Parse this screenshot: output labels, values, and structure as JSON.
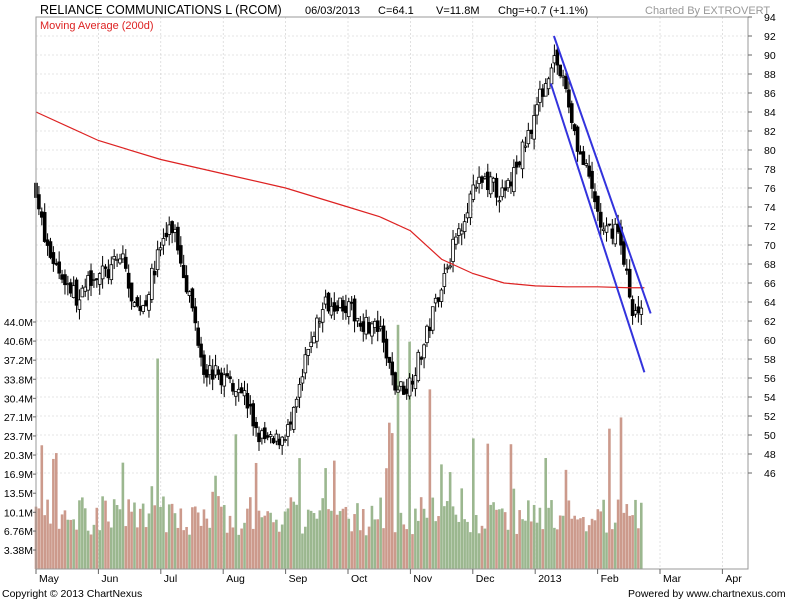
{
  "header": {
    "company": "RELIANCE COMMUNICATIONS L (RCOM)",
    "date": "06/03/2013",
    "close": "C=64.1",
    "volume": "V=11.8M",
    "change": "Chg=+0.7 (+1.1%)",
    "charted_by": "Charted By EXTROVERT"
  },
  "legend": {
    "ma_label": "Moving Average (200d)"
  },
  "footer": {
    "copyright": "Copyright © 2013 ChartNexus",
    "powered": "Powered by www.chartnexus.com"
  },
  "colors": {
    "ma_line": "#dd2222",
    "trendline": "#3333dd",
    "vol_up": "#9bb78f",
    "vol_down": "#cc9a8c",
    "grid": "#cccccc"
  },
  "chart_data": {
    "type": "candlestick",
    "title": "RELIANCE COMMUNICATIONS L (RCOM)",
    "price_axis": {
      "ticks": [
        46,
        48,
        50,
        52,
        54,
        56,
        58,
        60,
        62,
        64,
        66,
        68,
        70,
        72,
        74,
        76,
        78,
        80,
        82,
        84,
        86,
        88,
        90,
        92,
        94
      ],
      "ylim": [
        42.7,
        94
      ]
    },
    "volume_axis": {
      "ticks": [
        "3.38M",
        "6.76M",
        "10.1M",
        "13.5M",
        "16.9M",
        "20.3M",
        "23.7M",
        "27.1M",
        "30.4M",
        "33.8M",
        "37.2M",
        "40.6M",
        "44.0M"
      ],
      "unit": "M",
      "ylim": [
        0,
        44.0
      ]
    },
    "x_axis": {
      "labels": [
        "May",
        "Jun",
        "Jul",
        "Aug",
        "Sep",
        "Oct",
        "Nov",
        "Dec",
        "2013",
        "Feb",
        "Mar",
        "Apr"
      ]
    },
    "close_path": [
      {
        "m": 0,
        "close": 76
      },
      {
        "m": 0.15,
        "close": 70
      },
      {
        "m": 0.4,
        "close": 67
      },
      {
        "m": 0.7,
        "close": 64
      },
      {
        "m": 0.9,
        "close": 67
      },
      {
        "m": 1.15,
        "close": 67
      },
      {
        "m": 1.4,
        "close": 69
      },
      {
        "m": 1.55,
        "close": 63
      },
      {
        "m": 1.75,
        "close": 64
      },
      {
        "m": 2.0,
        "close": 70
      },
      {
        "m": 2.2,
        "close": 72
      },
      {
        "m": 2.45,
        "close": 65
      },
      {
        "m": 2.7,
        "close": 57
      },
      {
        "m": 3.0,
        "close": 56
      },
      {
        "m": 3.3,
        "close": 55
      },
      {
        "m": 3.55,
        "close": 50
      },
      {
        "m": 3.8,
        "close": 49
      },
      {
        "m": 4.1,
        "close": 51
      },
      {
        "m": 4.4,
        "close": 60
      },
      {
        "m": 4.65,
        "close": 64
      },
      {
        "m": 4.9,
        "close": 64
      },
      {
        "m": 5.2,
        "close": 62
      },
      {
        "m": 5.5,
        "close": 61
      },
      {
        "m": 5.75,
        "close": 55
      },
      {
        "m": 5.95,
        "close": 55
      },
      {
        "m": 6.2,
        "close": 59
      },
      {
        "m": 6.45,
        "close": 65
      },
      {
        "m": 6.7,
        "close": 70
      },
      {
        "m": 6.95,
        "close": 75
      },
      {
        "m": 7.2,
        "close": 77
      },
      {
        "m": 7.5,
        "close": 75
      },
      {
        "m": 7.75,
        "close": 79
      },
      {
        "m": 8.0,
        "close": 84
      },
      {
        "m": 8.15,
        "close": 87
      },
      {
        "m": 8.3,
        "close": 90
      },
      {
        "m": 8.5,
        "close": 86
      },
      {
        "m": 8.7,
        "close": 80
      },
      {
        "m": 8.9,
        "close": 76
      },
      {
        "m": 9.1,
        "close": 71
      },
      {
        "m": 9.3,
        "close": 72
      },
      {
        "m": 9.45,
        "close": 68
      },
      {
        "m": 9.55,
        "close": 62
      },
      {
        "m": 9.7,
        "close": 64.1
      }
    ],
    "ma200_path": [
      {
        "m": 0,
        "value": 84
      },
      {
        "m": 1.0,
        "value": 81
      },
      {
        "m": 2.0,
        "value": 79
      },
      {
        "m": 3.0,
        "value": 77.5
      },
      {
        "m": 4.0,
        "value": 76
      },
      {
        "m": 5.0,
        "value": 74
      },
      {
        "m": 5.5,
        "value": 73
      },
      {
        "m": 6.0,
        "value": 71.5
      },
      {
        "m": 6.5,
        "value": 68.5
      },
      {
        "m": 7.0,
        "value": 67
      },
      {
        "m": 7.5,
        "value": 66
      },
      {
        "m": 8.0,
        "value": 65.7
      },
      {
        "m": 8.5,
        "value": 65.6
      },
      {
        "m": 9.0,
        "value": 65.6
      },
      {
        "m": 9.5,
        "value": 65.5
      },
      {
        "m": 9.75,
        "value": 65.5
      }
    ],
    "trendlines": [
      {
        "from": {
          "m": 8.3,
          "price": 92
        },
        "to": {
          "m": 9.85,
          "price": 62.8
        }
      },
      {
        "from": {
          "m": 8.25,
          "price": 87
        },
        "to": {
          "m": 9.75,
          "price": 56.6
        }
      }
    ],
    "last_close": 64.1
  }
}
